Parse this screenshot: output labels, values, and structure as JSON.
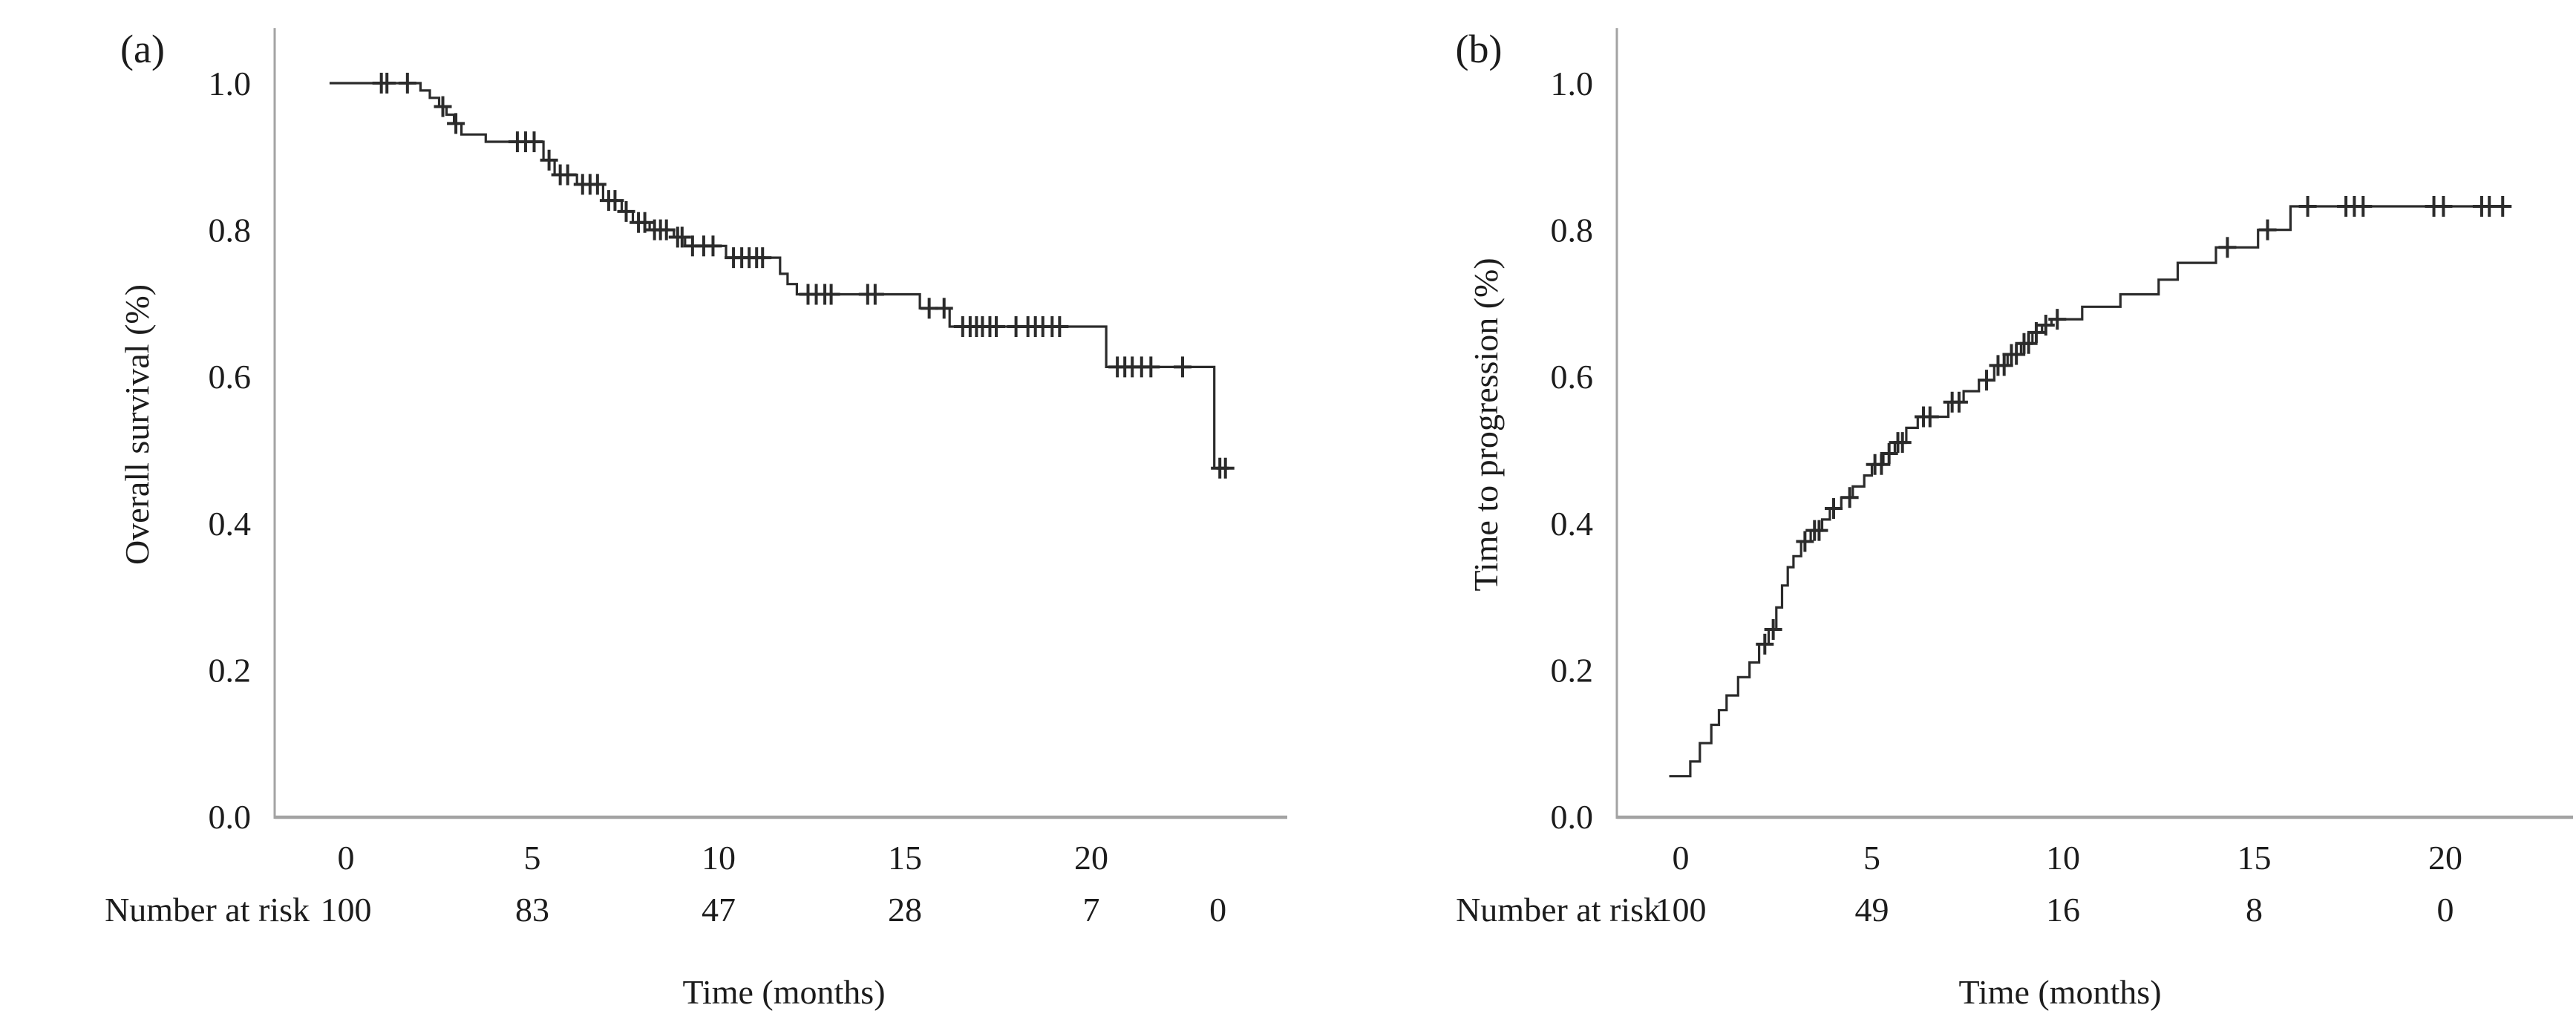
{
  "figure": {
    "background": "#ffffff",
    "text_color": "#1c1c1c",
    "axis_color": "#a3a3a3",
    "curve_color": "#2b2b2b"
  },
  "chart_data": [
    {
      "type": "line",
      "chart_style": "kaplan-meier-step",
      "panel_label": "(a)",
      "ylabel": "Overall survival (%)",
      "xlabel": "Time (months)",
      "risk_label": "Number at risk",
      "xlim": [
        0,
        25
      ],
      "ylim": [
        0.0,
        1.0
      ],
      "x_ticks": [
        0,
        5,
        10,
        15,
        20
      ],
      "y_tick_labels": [
        "1.0",
        "0.8",
        "0.6",
        "0.4",
        "0.2",
        "0.0"
      ],
      "grid": false,
      "legend": false,
      "curve_start": [
        -0.44,
        1.0
      ],
      "curve_end_time": 23.7,
      "steps": [
        [
          2.0,
          0.99
        ],
        [
          2.25,
          0.98
        ],
        [
          2.5,
          0.968
        ],
        [
          2.7,
          0.957
        ],
        [
          2.9,
          0.945
        ],
        [
          3.1,
          0.93
        ],
        [
          3.75,
          0.92
        ],
        [
          5.3,
          0.895
        ],
        [
          5.6,
          0.875
        ],
        [
          6.2,
          0.862
        ],
        [
          6.9,
          0.84
        ],
        [
          7.4,
          0.825
        ],
        [
          7.7,
          0.81
        ],
        [
          8.15,
          0.8
        ],
        [
          8.8,
          0.79
        ],
        [
          9.1,
          0.778
        ],
        [
          10.2,
          0.762
        ],
        [
          11.65,
          0.74
        ],
        [
          11.85,
          0.726
        ],
        [
          12.1,
          0.712
        ],
        [
          15.4,
          0.693
        ],
        [
          16.2,
          0.668
        ],
        [
          20.4,
          0.613
        ],
        [
          23.3,
          0.475
        ]
      ],
      "censors": [
        [
          0.95,
          1.0
        ],
        [
          1.1,
          1.0
        ],
        [
          1.65,
          1.0
        ],
        [
          2.6,
          0.968
        ],
        [
          2.95,
          0.945
        ],
        [
          4.6,
          0.92
        ],
        [
          4.82,
          0.92
        ],
        [
          5.05,
          0.92
        ],
        [
          5.45,
          0.895
        ],
        [
          5.75,
          0.875
        ],
        [
          5.95,
          0.875
        ],
        [
          6.35,
          0.862
        ],
        [
          6.55,
          0.862
        ],
        [
          6.75,
          0.862
        ],
        [
          7.05,
          0.84
        ],
        [
          7.22,
          0.84
        ],
        [
          7.52,
          0.825
        ],
        [
          7.85,
          0.81
        ],
        [
          8.02,
          0.81
        ],
        [
          8.28,
          0.8
        ],
        [
          8.44,
          0.8
        ],
        [
          8.6,
          0.8
        ],
        [
          8.9,
          0.79
        ],
        [
          9.02,
          0.79
        ],
        [
          9.3,
          0.778
        ],
        [
          9.6,
          0.778
        ],
        [
          9.85,
          0.778
        ],
        [
          10.4,
          0.762
        ],
        [
          10.62,
          0.762
        ],
        [
          10.82,
          0.762
        ],
        [
          11.02,
          0.762
        ],
        [
          11.18,
          0.762
        ],
        [
          12.4,
          0.712
        ],
        [
          12.62,
          0.712
        ],
        [
          12.85,
          0.712
        ],
        [
          13.02,
          0.712
        ],
        [
          14.0,
          0.712
        ],
        [
          14.2,
          0.712
        ],
        [
          15.65,
          0.693
        ],
        [
          16.05,
          0.693
        ],
        [
          16.55,
          0.668
        ],
        [
          16.75,
          0.668
        ],
        [
          16.92,
          0.668
        ],
        [
          17.08,
          0.668
        ],
        [
          17.28,
          0.668
        ],
        [
          17.45,
          0.668
        ],
        [
          17.98,
          0.668
        ],
        [
          18.3,
          0.668
        ],
        [
          18.5,
          0.668
        ],
        [
          18.7,
          0.668
        ],
        [
          18.95,
          0.668
        ],
        [
          19.15,
          0.668
        ],
        [
          20.7,
          0.613
        ],
        [
          20.9,
          0.613
        ],
        [
          21.1,
          0.613
        ],
        [
          21.35,
          0.613
        ],
        [
          21.6,
          0.613
        ],
        [
          22.45,
          0.613
        ],
        [
          23.45,
          0.475
        ],
        [
          23.6,
          0.475
        ]
      ],
      "number_at_risk": [
        {
          "time": 0,
          "n": "100"
        },
        {
          "time": 5,
          "n": "83"
        },
        {
          "time": 10,
          "n": "47"
        },
        {
          "time": 15,
          "n": "28"
        },
        {
          "time": 20,
          "n": "7"
        },
        {
          "time": 23.4,
          "n": "0"
        }
      ]
    },
    {
      "type": "line",
      "chart_style": "kaplan-meier-step",
      "panel_label": "(b)",
      "ylabel": "Time to progression (%)",
      "xlabel": "Time (months)",
      "risk_label": "Number at risk",
      "xlim": [
        0,
        23
      ],
      "ylim": [
        0.0,
        1.0
      ],
      "x_ticks": [
        0,
        5,
        10,
        15,
        20
      ],
      "y_tick_labels": [
        "1.0",
        "0.8",
        "0.6",
        "0.4",
        "0.2",
        "0.0"
      ],
      "grid": false,
      "legend": false,
      "curve_start": [
        -0.3,
        0.055
      ],
      "curve_end_time": 21.7,
      "steps": [
        [
          0.25,
          0.075
        ],
        [
          0.5,
          0.1
        ],
        [
          0.8,
          0.125
        ],
        [
          1.0,
          0.145
        ],
        [
          1.2,
          0.165
        ],
        [
          1.5,
          0.19
        ],
        [
          1.8,
          0.21
        ],
        [
          2.05,
          0.235
        ],
        [
          2.3,
          0.255
        ],
        [
          2.5,
          0.285
        ],
        [
          2.65,
          0.315
        ],
        [
          2.8,
          0.34
        ],
        [
          2.95,
          0.355
        ],
        [
          3.15,
          0.375
        ],
        [
          3.4,
          0.39
        ],
        [
          3.7,
          0.405
        ],
        [
          3.9,
          0.42
        ],
        [
          4.2,
          0.435
        ],
        [
          4.5,
          0.45
        ],
        [
          4.8,
          0.465
        ],
        [
          5.0,
          0.48
        ],
        [
          5.3,
          0.495
        ],
        [
          5.6,
          0.51
        ],
        [
          5.9,
          0.53
        ],
        [
          6.2,
          0.545
        ],
        [
          7.0,
          0.565
        ],
        [
          7.4,
          0.58
        ],
        [
          7.8,
          0.595
        ],
        [
          8.2,
          0.615
        ],
        [
          8.55,
          0.63
        ],
        [
          8.9,
          0.645
        ],
        [
          9.2,
          0.66
        ],
        [
          9.45,
          0.67
        ],
        [
          9.7,
          0.678
        ],
        [
          10.5,
          0.695
        ],
        [
          11.5,
          0.712
        ],
        [
          12.5,
          0.732
        ],
        [
          13.0,
          0.755
        ],
        [
          14.0,
          0.776
        ],
        [
          15.1,
          0.8
        ],
        [
          15.95,
          0.832
        ]
      ],
      "censors": [
        [
          2.2,
          0.235
        ],
        [
          2.42,
          0.255
        ],
        [
          3.25,
          0.375
        ],
        [
          3.5,
          0.39
        ],
        [
          3.62,
          0.39
        ],
        [
          4.0,
          0.42
        ],
        [
          4.42,
          0.435
        ],
        [
          5.08,
          0.48
        ],
        [
          5.25,
          0.48
        ],
        [
          5.45,
          0.495
        ],
        [
          5.68,
          0.51
        ],
        [
          5.8,
          0.51
        ],
        [
          6.35,
          0.545
        ],
        [
          6.52,
          0.545
        ],
        [
          7.1,
          0.565
        ],
        [
          7.28,
          0.565
        ],
        [
          8.0,
          0.595
        ],
        [
          8.3,
          0.615
        ],
        [
          8.46,
          0.615
        ],
        [
          8.65,
          0.63
        ],
        [
          8.78,
          0.63
        ],
        [
          8.98,
          0.645
        ],
        [
          9.1,
          0.645
        ],
        [
          9.3,
          0.66
        ],
        [
          9.55,
          0.67
        ],
        [
          9.85,
          0.678
        ],
        [
          14.3,
          0.776
        ],
        [
          15.35,
          0.8
        ],
        [
          16.4,
          0.832
        ],
        [
          17.4,
          0.832
        ],
        [
          17.62,
          0.832
        ],
        [
          17.85,
          0.832
        ],
        [
          19.7,
          0.832
        ],
        [
          19.95,
          0.832
        ],
        [
          20.95,
          0.832
        ],
        [
          21.15,
          0.832
        ],
        [
          21.5,
          0.832
        ]
      ],
      "number_at_risk": [
        {
          "time": 0,
          "n": "100"
        },
        {
          "time": 5,
          "n": "49"
        },
        {
          "time": 10,
          "n": "16"
        },
        {
          "time": 15,
          "n": "8"
        },
        {
          "time": 20,
          "n": "0"
        }
      ]
    }
  ]
}
